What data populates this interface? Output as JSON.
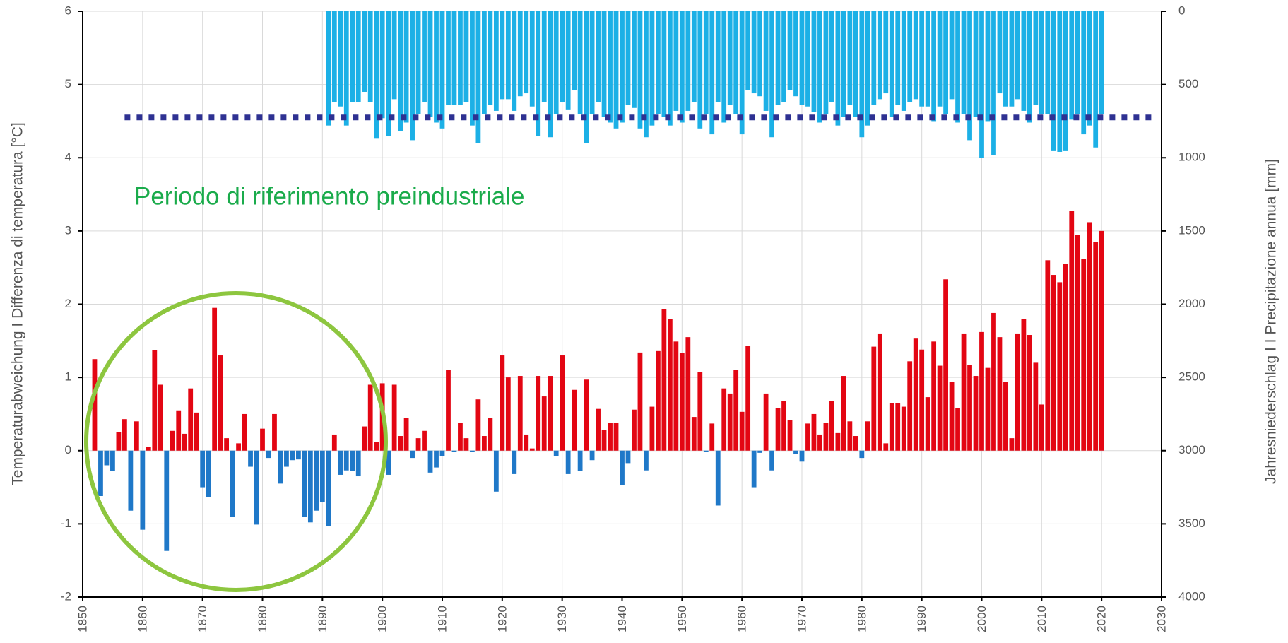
{
  "chart_data": {
    "type": "bar",
    "ylabel": "Temperaturabweichung I Differenza di temperatura [°C]",
    "y2label": "Jahresniederschlag I I Precipitazione annua [mm]",
    "annotation": "Periodo di riferimento preindustriale",
    "xlim": [
      1850,
      2030
    ],
    "xticks": [
      1850,
      1860,
      1870,
      1880,
      1890,
      1900,
      1910,
      1920,
      1930,
      1940,
      1950,
      1960,
      1970,
      1980,
      1990,
      2000,
      2010,
      2020,
      2030
    ],
    "ylim": [
      -2,
      6
    ],
    "yticks": [
      -2,
      -1,
      0,
      1,
      2,
      3,
      4,
      5,
      6
    ],
    "y2lim": [
      4000,
      0
    ],
    "y2ticks": [
      0,
      500,
      1000,
      1500,
      2000,
      2500,
      3000,
      3500,
      4000
    ],
    "grid": true,
    "series": [
      {
        "x": [
          1852,
          1853,
          1854,
          1855,
          1856,
          1857,
          1858,
          1859,
          1860,
          1861,
          1862,
          1863,
          1864,
          1865,
          1866,
          1867,
          1868,
          1869,
          1870,
          1871,
          1872,
          1873,
          1874,
          1875,
          1876,
          1877,
          1878,
          1879,
          1880,
          1881,
          1882,
          1883,
          1884,
          1885,
          1886,
          1887,
          1888,
          1889,
          1890,
          1891,
          1892,
          1893,
          1894,
          1895,
          1896,
          1897,
          1898,
          1899,
          1900,
          1901,
          1902,
          1903,
          1904,
          1905,
          1906,
          1907,
          1908,
          1909,
          1910,
          1911,
          1912,
          1913,
          1914,
          1915,
          1916,
          1917,
          1918,
          1919,
          1920,
          1921,
          1922,
          1923,
          1924,
          1925,
          1926,
          1927,
          1928,
          1929,
          1930,
          1931,
          1932,
          1933,
          1934,
          1935,
          1936,
          1937,
          1938,
          1939,
          1940,
          1941,
          1942,
          1943,
          1944,
          1945,
          1946,
          1947,
          1948,
          1949,
          1950,
          1951,
          1952,
          1953,
          1954,
          1955,
          1956,
          1957,
          1958,
          1959,
          1960,
          1961,
          1962,
          1963,
          1964,
          1965,
          1966,
          1967,
          1968,
          1969,
          1970,
          1971,
          1972,
          1973,
          1974,
          1975,
          1976,
          1977,
          1978,
          1979,
          1980,
          1981,
          1982,
          1983,
          1984,
          1985,
          1986,
          1987,
          1988,
          1989,
          1990,
          1991,
          1992,
          1993,
          1994,
          1995,
          1996,
          1997,
          1998,
          1999,
          2000,
          2001,
          2002,
          2003,
          2004,
          2005,
          2006,
          2007,
          2008,
          2009,
          2010,
          2011,
          2012,
          2013,
          2014,
          2015,
          2016,
          2017,
          2018,
          2019,
          2020
        ],
        "values": [
          1.25,
          -0.62,
          -0.2,
          -0.28,
          0.25,
          0.43,
          -0.82,
          0.4,
          -1.08,
          0.05,
          1.37,
          0.9,
          -1.37,
          0.27,
          0.55,
          0.23,
          0.85,
          0.52,
          -0.5,
          -0.63,
          1.95,
          1.3,
          0.17,
          -0.9,
          0.1,
          0.5,
          -0.22,
          -1.01,
          0.3,
          -0.1,
          0.5,
          -0.45,
          -0.22,
          -0.13,
          -0.12,
          -0.9,
          -0.98,
          -0.82,
          -0.7,
          -1.03,
          0.22,
          -0.33,
          -0.27,
          -0.28,
          -0.35,
          0.33,
          0.9,
          0.12,
          0.92,
          -0.33,
          0.9,
          0.2,
          0.45,
          -0.1,
          0.17,
          0.27,
          -0.3,
          -0.23,
          -0.07,
          1.1,
          -0.02,
          0.38,
          0.17,
          -0.02,
          0.7,
          0.2,
          0.45,
          -0.56,
          1.3,
          1.0,
          -0.32,
          1.02,
          0.22,
          0.03,
          1.02,
          0.74,
          1.02,
          -0.07,
          1.3,
          -0.32,
          0.83,
          -0.28,
          0.97,
          -0.13,
          0.57,
          0.28,
          0.38,
          0.38,
          -0.47,
          -0.17,
          0.56,
          1.34,
          -0.27,
          0.6,
          1.36,
          1.93,
          1.8,
          1.49,
          1.33,
          1.55,
          0.46,
          1.07,
          -0.02,
          0.37,
          -0.75,
          0.85,
          0.78,
          1.1,
          0.53,
          1.43,
          -0.5,
          -0.03,
          0.78,
          -0.27,
          0.58,
          0.68,
          0.42,
          -0.05,
          -0.15,
          0.37,
          0.5,
          0.22,
          0.38,
          0.68,
          0.24,
          1.02,
          0.4,
          0.2,
          -0.1,
          0.4,
          1.42,
          1.6,
          0.1,
          0.65,
          0.65,
          0.6,
          1.22,
          1.53,
          1.38,
          0.73,
          1.49,
          1.16,
          2.34,
          0.94,
          0.58,
          1.6,
          1.17,
          1.02,
          1.62,
          1.13,
          1.88,
          1.55,
          0.94,
          0.17,
          1.6,
          1.8,
          1.58,
          1.2,
          0.63,
          2.6,
          2.4,
          2.3,
          2.55,
          3.27,
          2.95,
          2.62,
          3.12,
          2.85,
          3.0
        ],
        "color_positive": "#e30613",
        "color_negative": "#1f78c8"
      },
      {
        "axis": "y2",
        "color": "#1cb0e6",
        "x": [
          1891,
          1892,
          1893,
          1894,
          1895,
          1896,
          1897,
          1898,
          1899,
          1900,
          1901,
          1902,
          1903,
          1904,
          1905,
          1906,
          1907,
          1908,
          1909,
          1910,
          1911,
          1912,
          1913,
          1914,
          1915,
          1916,
          1917,
          1918,
          1919,
          1920,
          1921,
          1922,
          1923,
          1924,
          1925,
          1926,
          1927,
          1928,
          1929,
          1930,
          1931,
          1932,
          1933,
          1934,
          1935,
          1936,
          1937,
          1938,
          1939,
          1940,
          1941,
          1942,
          1943,
          1944,
          1945,
          1946,
          1947,
          1948,
          1949,
          1950,
          1951,
          1952,
          1953,
          1954,
          1955,
          1956,
          1957,
          1958,
          1959,
          1960,
          1961,
          1962,
          1963,
          1964,
          1965,
          1966,
          1967,
          1968,
          1969,
          1970,
          1971,
          1972,
          1973,
          1974,
          1975,
          1976,
          1977,
          1978,
          1979,
          1980,
          1981,
          1982,
          1983,
          1984,
          1985,
          1986,
          1987,
          1988,
          1989,
          1990,
          1991,
          1992,
          1993,
          1994,
          1995,
          1996,
          1997,
          1998,
          1999,
          2000,
          2001,
          2002,
          2003,
          2004,
          2005,
          2006,
          2007,
          2008,
          2009,
          2010,
          2011,
          2012,
          2013,
          2014,
          2015,
          2016,
          2017,
          2018,
          2019,
          2020
        ],
        "values": [
          780,
          620,
          650,
          780,
          620,
          620,
          550,
          620,
          870,
          730,
          850,
          600,
          820,
          760,
          880,
          700,
          620,
          720,
          760,
          800,
          640,
          640,
          640,
          620,
          780,
          900,
          700,
          640,
          680,
          600,
          600,
          680,
          580,
          560,
          650,
          850,
          620,
          860,
          700,
          620,
          670,
          540,
          700,
          900,
          700,
          620,
          720,
          760,
          800,
          760,
          640,
          660,
          800,
          860,
          780,
          700,
          720,
          780,
          680,
          760,
          680,
          620,
          800,
          700,
          840,
          620,
          760,
          640,
          700,
          840,
          540,
          560,
          580,
          680,
          860,
          640,
          620,
          540,
          580,
          640,
          650,
          690,
          760,
          700,
          620,
          780,
          720,
          640,
          720,
          860,
          780,
          640,
          600,
          560,
          720,
          640,
          680,
          620,
          600,
          650,
          650,
          750,
          650,
          700,
          600,
          760,
          700,
          880,
          720,
          1000,
          750,
          980,
          560,
          650,
          650,
          600,
          680,
          760,
          640,
          700,
          700,
          950,
          960,
          950,
          740,
          700,
          840,
          780,
          930,
          700
        ]
      }
    ],
    "reference_line": {
      "value": 725,
      "x": [
        1857,
        2029
      ],
      "color": "#2e3192"
    }
  }
}
